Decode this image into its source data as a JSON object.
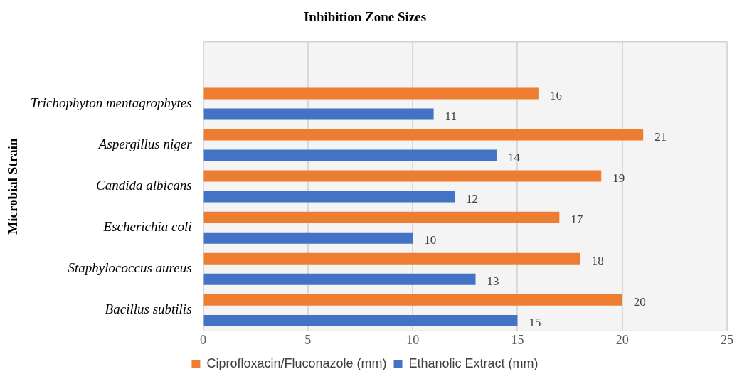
{
  "chart_data": {
    "type": "bar",
    "orientation": "horizontal",
    "title": "Inhibition Zone Sizes",
    "ylabel": "Microbial Strain",
    "categories": [
      null,
      "Trichophyton mentagrophytes",
      "Aspergillus niger",
      "Candida albicans",
      "Escherichia coli",
      "Staphylococcus aureus",
      "Bacillus subtilis"
    ],
    "series": [
      {
        "name": "Ciprofloxacin/Fluconazole (mm)",
        "color": "#ed7d31",
        "values": [
          null,
          16,
          21,
          19,
          17,
          18,
          20
        ]
      },
      {
        "name": "Ethanolic Extract (mm)",
        "color": "#4472c4",
        "values": [
          null,
          11,
          14,
          12,
          10,
          13,
          15
        ]
      }
    ],
    "xlim": [
      0,
      25
    ],
    "xticks": [
      0,
      5,
      10,
      15,
      20,
      25
    ],
    "grid": "x",
    "legend": "bottom",
    "data_labels": true
  }
}
